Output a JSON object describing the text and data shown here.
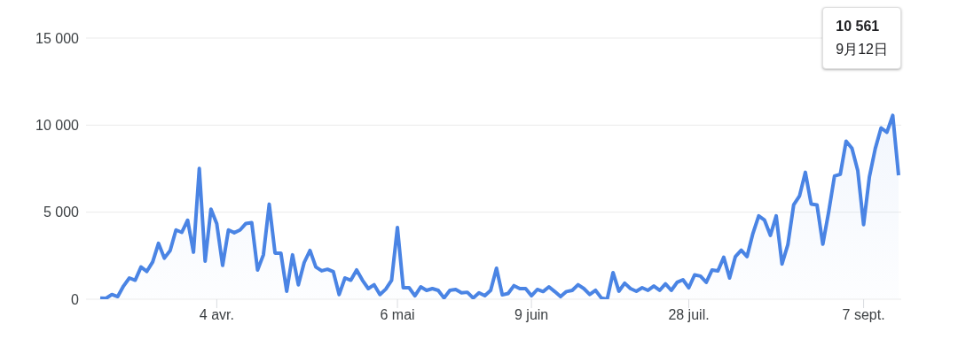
{
  "chart_data": {
    "type": "area",
    "categories": [
      null,
      null,
      null,
      null,
      null,
      null,
      null,
      null,
      null,
      null,
      null,
      null,
      null,
      null,
      null,
      null,
      null,
      null,
      null,
      null,
      "4 avr.",
      null,
      null,
      null,
      null,
      null,
      null,
      null,
      null,
      null,
      null,
      null,
      null,
      null,
      null,
      null,
      null,
      null,
      null,
      null,
      null,
      null,
      null,
      null,
      null,
      null,
      null,
      null,
      null,
      null,
      null,
      "6 mai",
      null,
      null,
      null,
      null,
      null,
      null,
      null,
      null,
      null,
      null,
      null,
      null,
      null,
      null,
      null,
      null,
      null,
      null,
      null,
      null,
      null,
      null,
      "9 juin",
      null,
      null,
      null,
      null,
      null,
      null,
      null,
      null,
      null,
      null,
      null,
      null,
      null,
      null,
      null,
      null,
      null,
      null,
      null,
      null,
      null,
      null,
      null,
      null,
      null,
      null,
      "28 juil.",
      null,
      null,
      null,
      null,
      null,
      null,
      null,
      null,
      null,
      null,
      null,
      null,
      null,
      null,
      null,
      null,
      null,
      null,
      null,
      null,
      null,
      null,
      null,
      null,
      null,
      null,
      null,
      null,
      null,
      "7 sept.",
      null,
      null,
      null,
      null,
      null,
      null
    ],
    "series": [
      {
        "color": "#4a84e4",
        "values": [
          60,
          50,
          270,
          150,
          760,
          1220,
          1090,
          1850,
          1600,
          2140,
          3210,
          2360,
          2800,
          3980,
          3840,
          4540,
          2700,
          7510,
          2190,
          5170,
          4330,
          1940,
          3980,
          3820,
          3980,
          4350,
          4400,
          1680,
          2550,
          5460,
          2650,
          2650,
          460,
          2550,
          830,
          2110,
          2800,
          1850,
          1630,
          1720,
          1580,
          270,
          1220,
          1090,
          1680,
          1090,
          610,
          830,
          270,
          580,
          1090,
          4120,
          660,
          660,
          200,
          710,
          510,
          610,
          510,
          70,
          510,
          560,
          370,
          400,
          70,
          370,
          200,
          510,
          1780,
          250,
          330,
          780,
          610,
          610,
          200,
          560,
          440,
          710,
          440,
          150,
          440,
          510,
          830,
          610,
          270,
          510,
          70,
          0,
          1530,
          460,
          920,
          610,
          460,
          660,
          510,
          760,
          510,
          880,
          510,
          970,
          1120,
          660,
          1400,
          1330,
          970,
          1680,
          1630,
          2410,
          1220,
          2450,
          2820,
          2450,
          3770,
          4790,
          4540,
          3670,
          4790,
          2020,
          3130,
          5420,
          5930,
          7290,
          5470,
          5420,
          3160,
          5000,
          7070,
          7180,
          9080,
          8670,
          7380,
          4280,
          7040,
          8650,
          9840,
          9590,
          10561,
          7120
        ]
      }
    ],
    "ylim": [
      0,
      15000
    ],
    "yticks": [
      {
        "value": 0,
        "label": "0"
      },
      {
        "value": 5000,
        "label": "5 000"
      },
      {
        "value": 10000,
        "label": "10 000"
      },
      {
        "value": 15000,
        "label": "15 000"
      }
    ],
    "grid": "y",
    "legend": false,
    "marker": "none",
    "annotations": [
      "10 561",
      "9月12日"
    ]
  }
}
